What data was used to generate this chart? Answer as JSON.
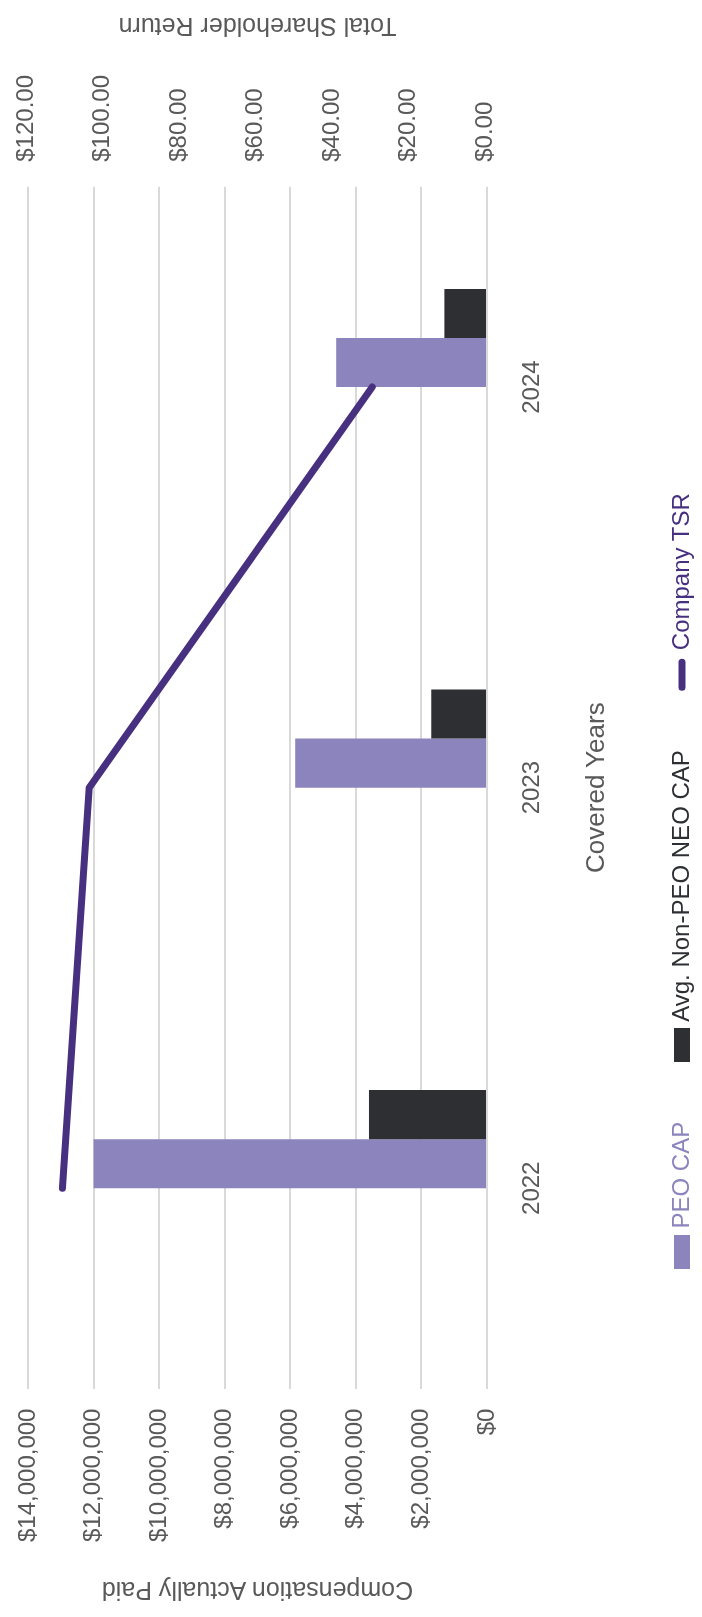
{
  "chart_data": {
    "type": "bar",
    "orientation": "horizontal",
    "categories": [
      "2024",
      "2023",
      "2022"
    ],
    "ylabel": "Covered Years",
    "xlabel": "Compensation Actually Paid",
    "x2label": "Total Shareholder Return",
    "series": [
      {
        "name": "PEO CAP",
        "color": "#8b84bd",
        "values": [
          4600000,
          5850000,
          12000000
        ]
      },
      {
        "name": "Avg. Non-PEO NEO CAP",
        "color": "#2d2f33",
        "values": [
          1300000,
          1700000,
          3600000
        ]
      },
      {
        "name": "Company TSR",
        "color": "#47307f",
        "type": "line",
        "axis": "x2",
        "values": [
          30,
          104,
          111
        ]
      }
    ],
    "xlim": [
      14000000,
      0
    ],
    "xticks": [
      {
        "value": 0,
        "label": "$0"
      },
      {
        "value": 2000000,
        "label": "$2,000,000"
      },
      {
        "value": 4000000,
        "label": "$4,000,000"
      },
      {
        "value": 6000000,
        "label": "$6,000,000"
      },
      {
        "value": 8000000,
        "label": "$8,000,000"
      },
      {
        "value": 10000000,
        "label": "$10,000,000"
      },
      {
        "value": 12000000,
        "label": "$12,000,000"
      },
      {
        "value": 14000000,
        "label": "$14,000,000"
      }
    ],
    "x2lim": [
      120,
      0
    ],
    "x2ticks": [
      {
        "value": 0,
        "label": "$0.00"
      },
      {
        "value": 20,
        "label": "$20.00"
      },
      {
        "value": 40,
        "label": "$40.00"
      },
      {
        "value": 60,
        "label": "$60.00"
      },
      {
        "value": 80,
        "label": "$80.00"
      },
      {
        "value": 100,
        "label": "$100.00"
      },
      {
        "value": 120,
        "label": "$120.00"
      }
    ],
    "grid": "x",
    "legend": "right",
    "marker": "none"
  }
}
